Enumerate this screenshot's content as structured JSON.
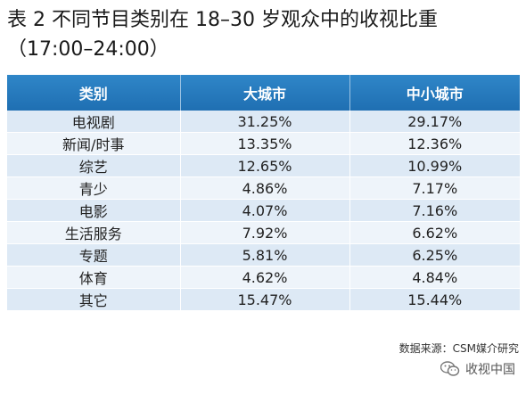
{
  "title": {
    "line1": "表 2  不同节目类别在 18–30 岁观众中的收视比重",
    "line2": "（17:00–24:00）"
  },
  "table": {
    "headers": [
      "类别",
      "大城市",
      "中小城市"
    ],
    "rows": [
      [
        "电视剧",
        "31.25%",
        "29.17%"
      ],
      [
        "新闻/时事",
        "13.35%",
        "12.36%"
      ],
      [
        "综艺",
        "12.65%",
        "10.99%"
      ],
      [
        "青少",
        "4.86%",
        "7.17%"
      ],
      [
        "电影",
        "4.07%",
        "7.16%"
      ],
      [
        "生活服务",
        "7.92%",
        "6.62%"
      ],
      [
        "专题",
        "5.81%",
        "6.25%"
      ],
      [
        "体育",
        "4.62%",
        "4.84%"
      ],
      [
        "其它",
        "15.47%",
        "15.44%"
      ]
    ]
  },
  "source": "数据来源：CSM媒介研究",
  "watermark": {
    "icon": "wechat-icon",
    "text": "收视中国"
  },
  "colors": {
    "header_bg": "#2a7fc1",
    "row_bg": "#dde9f5"
  }
}
